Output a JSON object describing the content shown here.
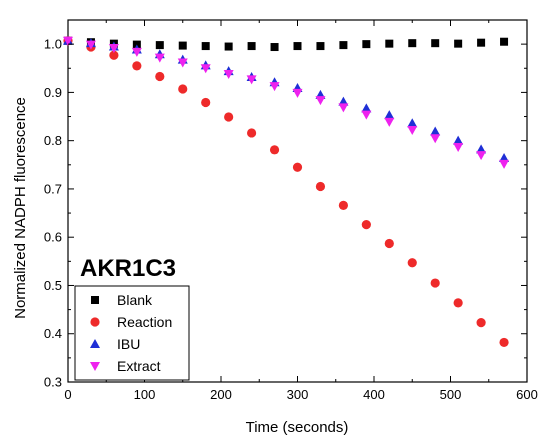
{
  "chart_data": {
    "type": "scatter",
    "xlabel": "Time (seconds)",
    "ylabel": "Normalized NADPH fluorescence",
    "annotation": "AKR1C3",
    "xlim": [
      0,
      600
    ],
    "ylim": [
      0.3,
      1.05
    ],
    "xticks": [
      0,
      100,
      200,
      300,
      400,
      500,
      600
    ],
    "yticks": [
      0.3,
      0.4,
      0.5,
      0.6,
      0.7,
      0.8,
      0.9,
      1.0
    ],
    "grid": false,
    "legend_position": "bottom-left",
    "x": [
      0,
      30,
      60,
      90,
      120,
      150,
      180,
      210,
      240,
      270,
      300,
      330,
      360,
      390,
      420,
      450,
      480,
      510,
      540,
      570
    ],
    "series": [
      {
        "name": "Blank",
        "marker": "square",
        "color": "#000000",
        "values": [
          1.007,
          1.004,
          1.001,
          0.999,
          0.998,
          0.997,
          0.996,
          0.995,
          0.996,
          0.994,
          0.996,
          0.996,
          0.998,
          1.0,
          1.001,
          1.002,
          1.002,
          1.001,
          1.003,
          1.005
        ]
      },
      {
        "name": "Reaction",
        "marker": "circle",
        "color": "#ee2a2a",
        "values": [
          1.007,
          0.994,
          0.977,
          0.955,
          0.933,
          0.907,
          0.879,
          0.849,
          0.816,
          0.781,
          0.745,
          0.705,
          0.666,
          0.626,
          0.587,
          0.547,
          0.505,
          0.464,
          0.423,
          0.382
        ]
      },
      {
        "name": "IBU",
        "marker": "triangle-up",
        "color": "#1f2fd6",
        "values": [
          1.007,
          1.002,
          0.995,
          0.989,
          0.979,
          0.968,
          0.956,
          0.944,
          0.932,
          0.921,
          0.909,
          0.895,
          0.881,
          0.867,
          0.853,
          0.836,
          0.819,
          0.8,
          0.782,
          0.764
        ]
      },
      {
        "name": "Extract",
        "marker": "triangle-down",
        "color": "#ee22ee",
        "values": [
          1.007,
          0.999,
          0.992,
          0.984,
          0.972,
          0.962,
          0.95,
          0.938,
          0.927,
          0.913,
          0.899,
          0.884,
          0.869,
          0.854,
          0.839,
          0.822,
          0.805,
          0.787,
          0.77,
          0.752
        ]
      }
    ]
  }
}
